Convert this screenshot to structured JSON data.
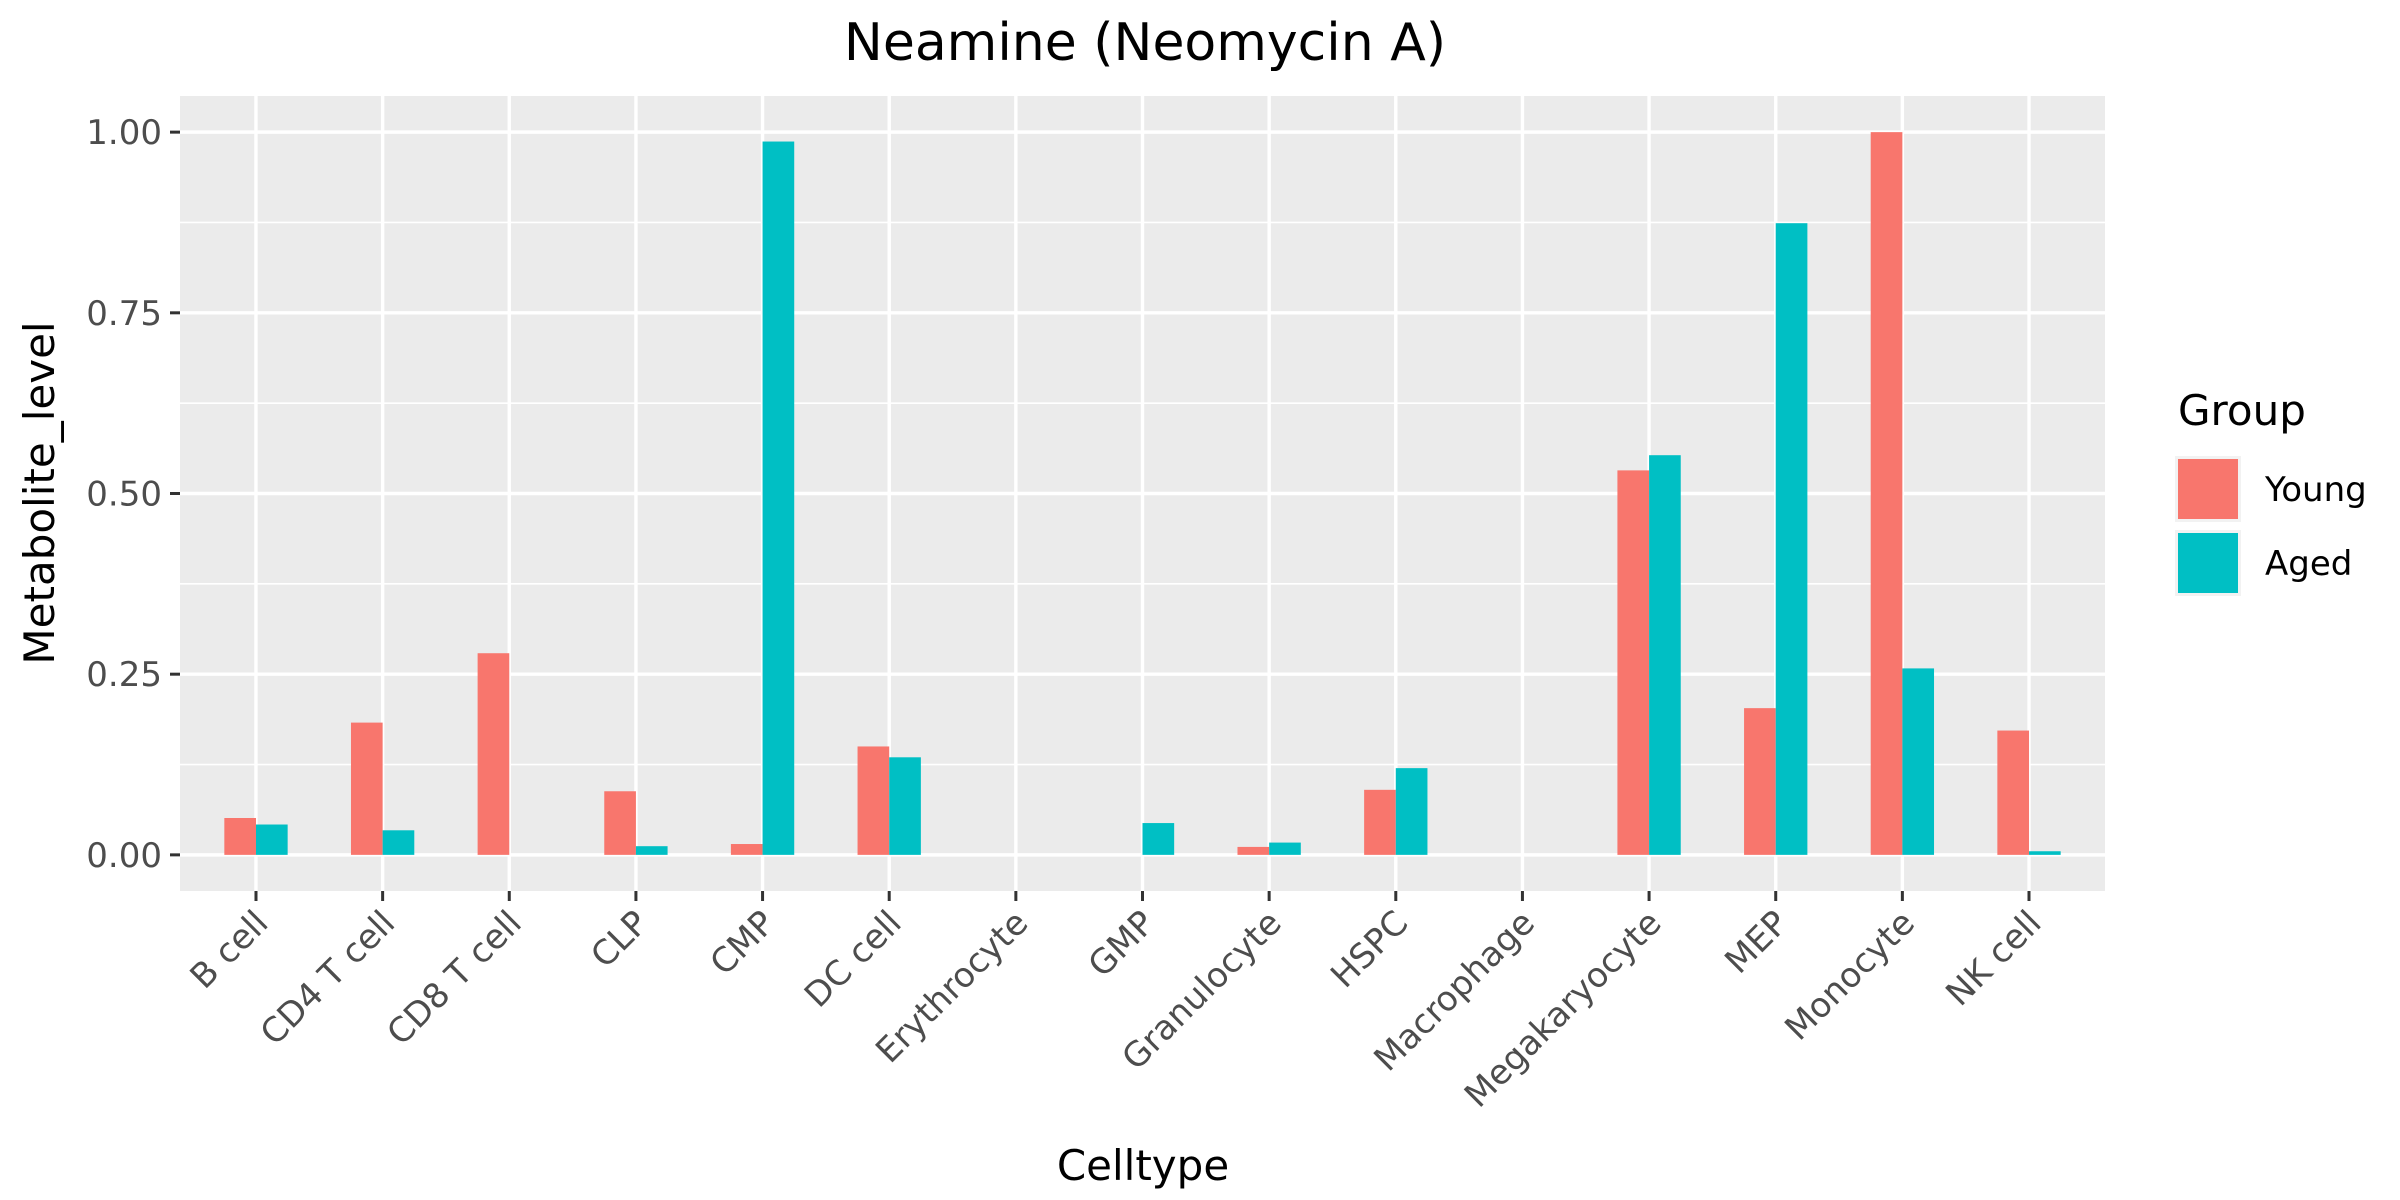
{
  "chart_data": {
    "type": "bar",
    "title": "Neamine (Neomycin A)",
    "xlabel": "Celltype",
    "ylabel": "Metabolite_level",
    "categories": [
      "B cell",
      "CD4 T cell",
      "CD8 T cell",
      "CLP",
      "CMP",
      "DC cell",
      "Erythrocyte",
      "GMP",
      "Granulocyte",
      "HSPC",
      "Macrophage",
      "Megakaryocyte",
      "MEP",
      "Monocyte",
      "NK cell"
    ],
    "series": [
      {
        "name": "Young",
        "color": "#F8766D",
        "values": [
          0.051,
          0.183,
          0.279,
          0.088,
          0.015,
          0.15,
          0.0,
          0.0,
          0.011,
          0.09,
          0.0,
          0.532,
          0.203,
          1.0,
          0.172
        ]
      },
      {
        "name": "Aged",
        "color": "#00BFC4",
        "values": [
          0.042,
          0.034,
          0.0,
          0.012,
          0.987,
          0.135,
          0.0,
          0.044,
          0.017,
          0.12,
          0.0,
          0.553,
          0.874,
          0.258,
          0.005
        ]
      }
    ],
    "ylim": [
      -0.05,
      1.05
    ],
    "yticks": [
      0.0,
      0.25,
      0.5,
      0.75,
      1.0
    ],
    "ytick_labels": [
      "0.00",
      "0.25",
      "0.50",
      "0.75",
      "1.00"
    ],
    "grid": true,
    "panel_color": "#EBEBEB",
    "legend": {
      "title": "Group",
      "position": "right"
    }
  }
}
